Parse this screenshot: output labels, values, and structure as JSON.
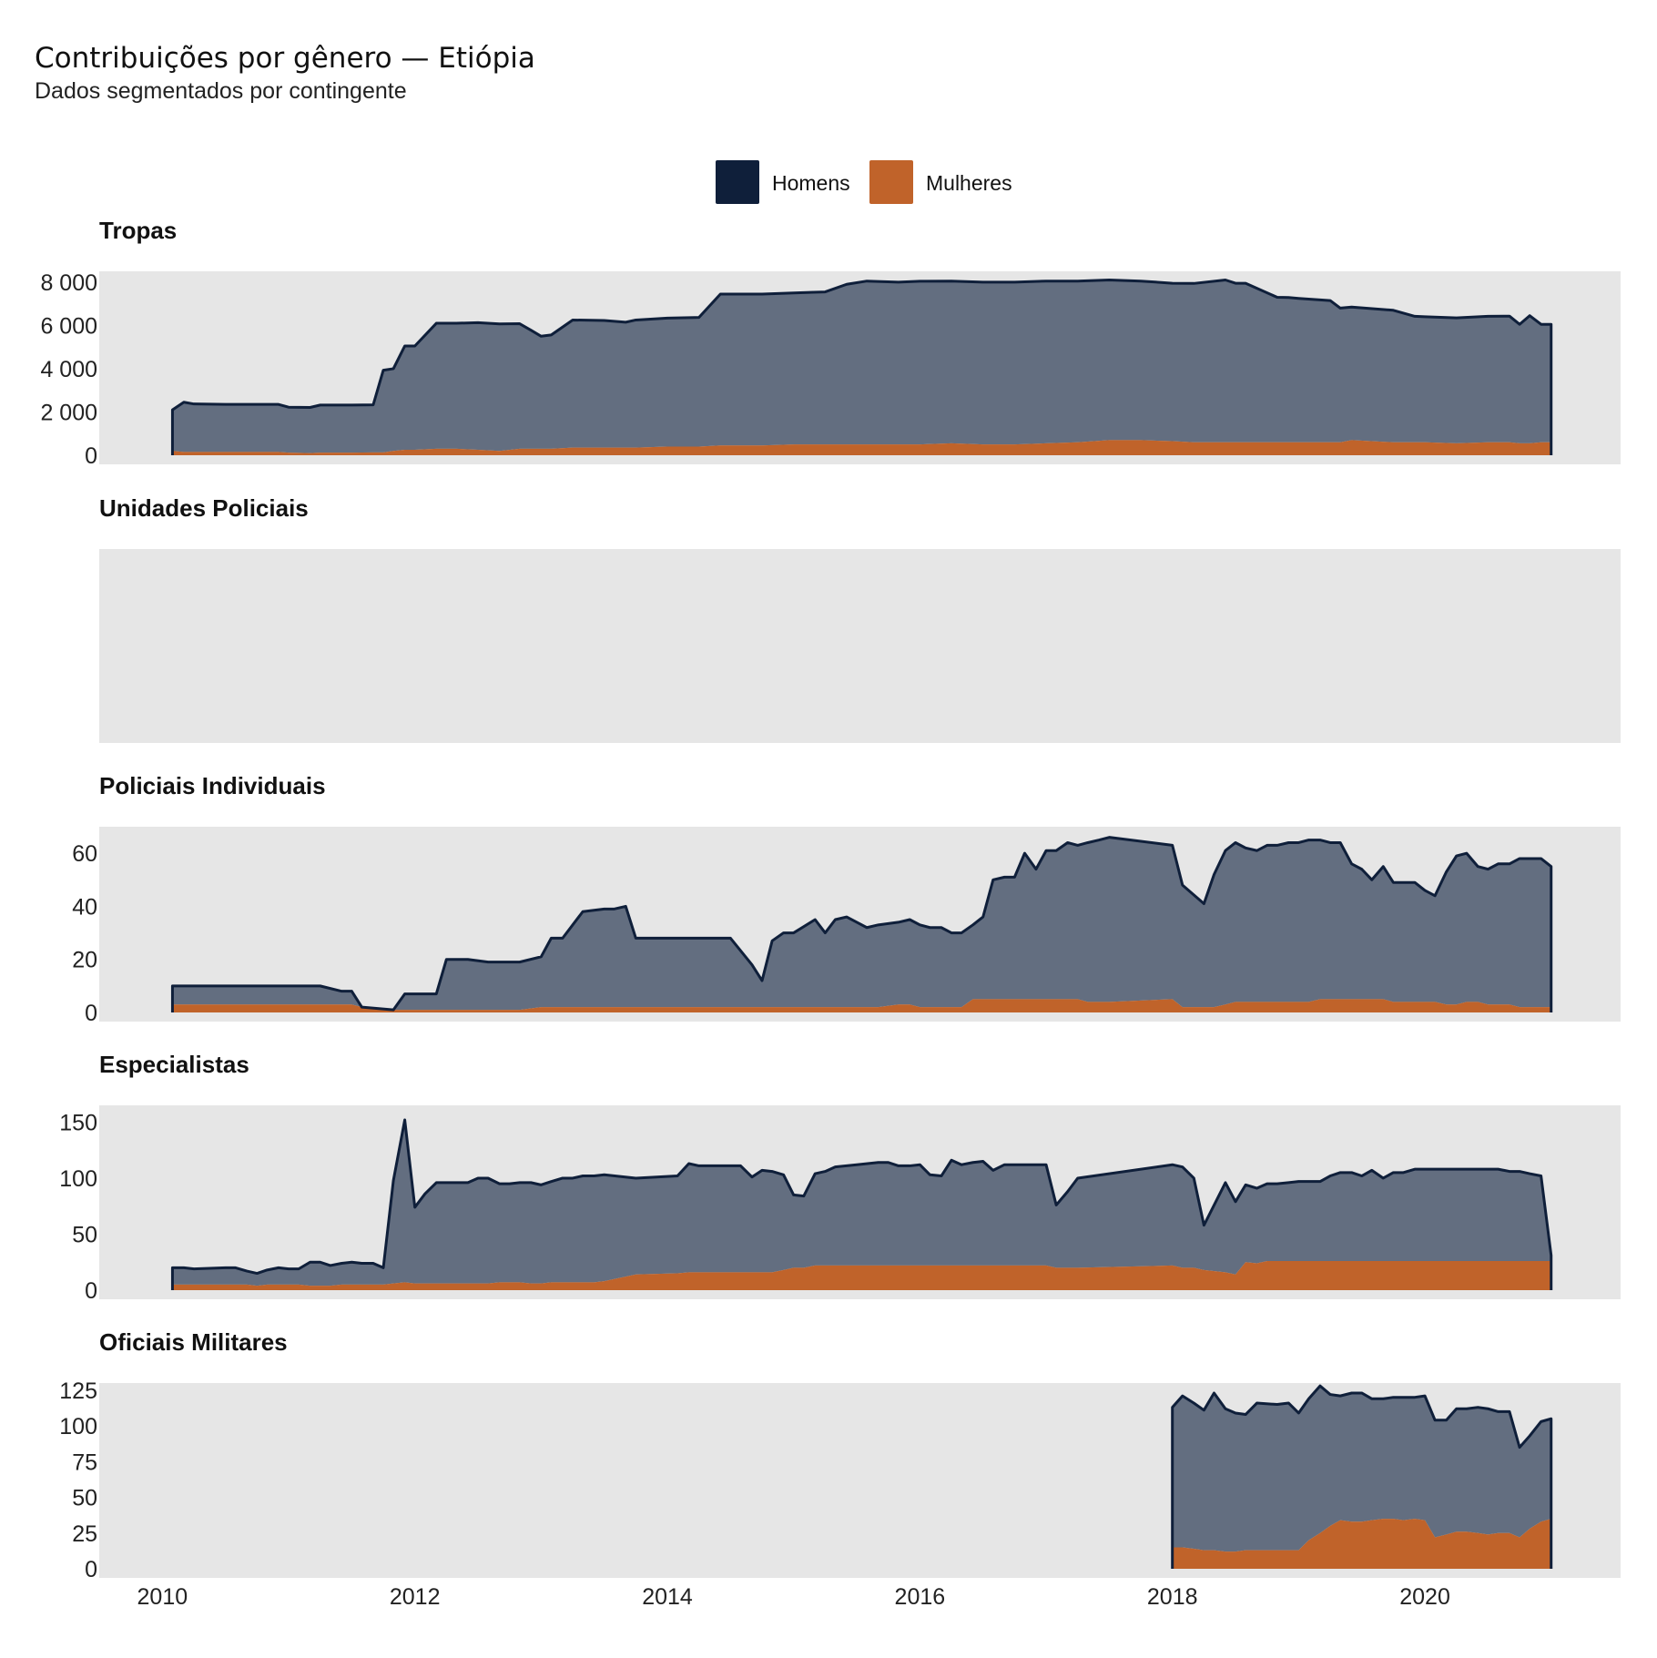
{
  "title": "Contribuições por gênero — Etiópia",
  "subtitle": "Dados segmentados por contingente",
  "colors": {
    "men": "#0f1f3a",
    "men_fill": "#636e80",
    "women": "#c0632a",
    "panel_bg": "#e6e6e6"
  },
  "chart_data": {
    "type": "area",
    "stacked": true,
    "title": "Contribuições por gênero — Etiópia",
    "subtitle": "Dados segmentados por contingente",
    "legend": {
      "position": "top-center",
      "items": [
        "Homens",
        "Mulheres"
      ]
    },
    "x_ticks": [
      "2010",
      "2012",
      "2014",
      "2016",
      "2018",
      "2020"
    ],
    "xlim": [
      2009.5,
      2021.55
    ],
    "series_names": [
      "Homens",
      "Mulheres"
    ],
    "panels": [
      {
        "name": "Tropas",
        "ylim": [
          0,
          8500
        ],
        "y_ticks": [
          0,
          2000,
          4000,
          6000,
          8000
        ],
        "y_tick_labels": [
          "0",
          "2 000",
          "4 000",
          "6 000",
          "8 000"
        ],
        "x": [
          2010.08,
          2010.17,
          2010.25,
          2010.5,
          2010.75,
          2010.92,
          2011.0,
          2011.17,
          2011.25,
          2011.5,
          2011.67,
          2011.75,
          2011.83,
          2011.92,
          2012.0,
          2012.17,
          2012.25,
          2012.33,
          2012.5,
          2012.67,
          2012.83,
          2012.92,
          2013.0,
          2013.08,
          2013.25,
          2013.5,
          2013.67,
          2013.75,
          2014.0,
          2014.25,
          2014.42,
          2014.58,
          2014.67,
          2014.75,
          2015.0,
          2015.25,
          2015.42,
          2015.58,
          2015.83,
          2016.0,
          2016.25,
          2016.5,
          2016.75,
          2017.0,
          2017.25,
          2017.5,
          2017.75,
          2018.0,
          2018.17,
          2018.42,
          2018.5,
          2018.58,
          2018.83,
          2018.92,
          2019.0,
          2019.25,
          2019.33,
          2019.42,
          2019.75,
          2019.92,
          2020.0,
          2020.25,
          2020.5,
          2020.67,
          2020.75,
          2020.83,
          2020.92,
          2021.0
        ],
        "men": [
          1900,
          2300,
          2220,
          2200,
          2200,
          2200,
          2100,
          2110,
          2200,
          2200,
          2200,
          3800,
          3800,
          4800,
          4800,
          5800,
          5800,
          5800,
          5880,
          5870,
          5780,
          5480,
          5200,
          5260,
          5900,
          5880,
          5800,
          5900,
          5940,
          5970,
          7000,
          7000,
          7000,
          7000,
          7000,
          7050,
          7400,
          7550,
          7500,
          7540,
          7500,
          7500,
          7500,
          7500,
          7450,
          7400,
          7350,
          7300,
          7340,
          7500,
          7350,
          7350,
          6700,
          6690,
          6650,
          6550,
          6200,
          6150,
          6100,
          5820,
          5800,
          5800,
          5820,
          5830,
          5500,
          5900,
          5450,
          5450
        ],
        "women": [
          200,
          150,
          150,
          150,
          150,
          150,
          120,
          100,
          120,
          120,
          130,
          130,
          200,
          250,
          250,
          300,
          300,
          300,
          250,
          200,
          300,
          300,
          300,
          300,
          350,
          350,
          350,
          350,
          400,
          400,
          450,
          450,
          450,
          450,
          500,
          500,
          500,
          500,
          500,
          500,
          550,
          500,
          500,
          550,
          600,
          700,
          700,
          650,
          600,
          600,
          600,
          600,
          600,
          600,
          600,
          600,
          600,
          700,
          600,
          600,
          600,
          550,
          600,
          600,
          550,
          550,
          600,
          600
        ]
      },
      {
        "name": "Unidades Policiais",
        "empty": true
      },
      {
        "name": "Policiais Individuais",
        "ylim": [
          0,
          70
        ],
        "y_ticks": [
          0,
          20,
          40,
          60
        ],
        "y_tick_labels": [
          "0",
          "20",
          "40",
          "60"
        ],
        "x": [
          2010.08,
          2011.25,
          2011.42,
          2011.5,
          2011.58,
          2011.83,
          2011.92,
          2012.17,
          2012.25,
          2012.42,
          2012.58,
          2012.75,
          2012.83,
          2013.0,
          2013.08,
          2013.17,
          2013.25,
          2013.33,
          2013.5,
          2013.58,
          2013.67,
          2013.75,
          2013.92,
          2014.0,
          2014.5,
          2014.67,
          2014.75,
          2014.83,
          2014.92,
          2015.0,
          2015.17,
          2015.25,
          2015.33,
          2015.42,
          2015.58,
          2015.67,
          2015.83,
          2015.92,
          2016.0,
          2016.08,
          2016.17,
          2016.25,
          2016.33,
          2016.42,
          2016.5,
          2016.58,
          2016.67,
          2016.75,
          2016.83,
          2016.92,
          2017.0,
          2017.08,
          2017.17,
          2017.25,
          2017.33,
          2017.42,
          2017.5,
          2018.0,
          2018.08,
          2018.25,
          2018.33,
          2018.42,
          2018.5,
          2018.58,
          2018.67,
          2018.75,
          2018.83,
          2018.92,
          2019.0,
          2019.08,
          2019.17,
          2019.25,
          2019.33,
          2019.42,
          2019.5,
          2019.58,
          2019.67,
          2019.75,
          2019.83,
          2019.92,
          2020.0,
          2020.08,
          2020.17,
          2020.25,
          2020.33,
          2020.42,
          2020.5,
          2020.58,
          2020.67,
          2020.75,
          2020.83,
          2020.92,
          2021.0
        ],
        "men": [
          7,
          7,
          5,
          5,
          0,
          0,
          6,
          6,
          19,
          19,
          18,
          18,
          18,
          19,
          26,
          26,
          31,
          36,
          37,
          37,
          38,
          26,
          26,
          26,
          26,
          16,
          10,
          25,
          28,
          28,
          33,
          28,
          33,
          34,
          30,
          31,
          31,
          32,
          31,
          30,
          30,
          28,
          28,
          28,
          31,
          45,
          46,
          46,
          55,
          49,
          56,
          56,
          59,
          58,
          60,
          61,
          62,
          58,
          46,
          39,
          50,
          58,
          60,
          58,
          57,
          59,
          59,
          60,
          60,
          61,
          60,
          59,
          59,
          51,
          49,
          45,
          50,
          45,
          45,
          45,
          42,
          40,
          50,
          56,
          56,
          51,
          51,
          53,
          53,
          56,
          56,
          56,
          53
        ],
        "women": [
          3,
          3,
          3,
          3,
          2,
          1,
          1,
          1,
          1,
          1,
          1,
          1,
          1,
          2,
          2,
          2,
          2,
          2,
          2,
          2,
          2,
          2,
          2,
          2,
          2,
          2,
          2,
          2,
          2,
          2,
          2,
          2,
          2,
          2,
          2,
          2,
          3,
          3,
          2,
          2,
          2,
          2,
          2,
          5,
          5,
          5,
          5,
          5,
          5,
          5,
          5,
          5,
          5,
          5,
          4,
          4,
          4,
          5,
          2,
          2,
          2,
          3,
          4,
          4,
          4,
          4,
          4,
          4,
          4,
          4,
          5,
          5,
          5,
          5,
          5,
          5,
          5,
          4,
          4,
          4,
          4,
          4,
          3,
          3,
          4,
          4,
          3,
          3,
          3,
          2,
          2,
          2,
          2
        ]
      },
      {
        "name": "Especialistas",
        "ylim": [
          0,
          165
        ],
        "y_ticks": [
          0,
          50,
          100,
          150
        ],
        "y_tick_labels": [
          "0",
          "50",
          "100",
          "150"
        ],
        "x": [
          2010.08,
          2010.17,
          2010.25,
          2010.5,
          2010.58,
          2010.67,
          2010.75,
          2010.83,
          2010.92,
          2011.0,
          2011.08,
          2011.17,
          2011.25,
          2011.33,
          2011.42,
          2011.5,
          2011.58,
          2011.67,
          2011.75,
          2011.83,
          2011.92,
          2012.0,
          2012.08,
          2012.17,
          2012.25,
          2012.33,
          2012.42,
          2012.5,
          2012.58,
          2012.67,
          2012.75,
          2012.83,
          2012.92,
          2013.0,
          2013.08,
          2013.17,
          2013.25,
          2013.33,
          2013.42,
          2013.5,
          2013.75,
          2014.08,
          2014.17,
          2014.25,
          2014.33,
          2014.42,
          2014.58,
          2014.67,
          2014.75,
          2014.83,
          2014.92,
          2015.0,
          2015.08,
          2015.17,
          2015.25,
          2015.33,
          2015.5,
          2015.67,
          2015.75,
          2015.83,
          2015.92,
          2016.0,
          2016.08,
          2016.17,
          2016.25,
          2016.33,
          2016.42,
          2016.5,
          2016.58,
          2016.67,
          2016.75,
          2016.83,
          2017.0,
          2017.08,
          2017.17,
          2017.25,
          2018.0,
          2018.08,
          2018.17,
          2018.25,
          2018.42,
          2018.5,
          2018.58,
          2018.67,
          2018.75,
          2018.83,
          2018.92,
          2019.0,
          2019.08,
          2019.17,
          2019.25,
          2019.33,
          2019.42,
          2019.5,
          2019.58,
          2019.67,
          2019.75,
          2019.83,
          2019.92,
          2020.0,
          2020.08,
          2020.17,
          2020.25,
          2020.33,
          2020.42,
          2020.5,
          2020.58,
          2020.67,
          2020.75,
          2020.83,
          2020.92,
          2021.0
        ],
        "men": [
          15,
          15,
          14,
          15,
          15,
          12,
          11,
          13,
          15,
          14,
          14,
          21,
          21,
          18,
          19,
          20,
          19,
          19,
          15,
          92,
          145,
          68,
          80,
          90,
          90,
          90,
          90,
          94,
          94,
          88,
          88,
          89,
          90,
          88,
          90,
          93,
          93,
          95,
          95,
          95,
          86,
          87,
          97,
          95,
          95,
          95,
          95,
          85,
          91,
          90,
          85,
          65,
          64,
          82,
          84,
          88,
          90,
          92,
          92,
          89,
          89,
          90,
          81,
          80,
          94,
          90,
          92,
          93,
          85,
          90,
          90,
          90,
          90,
          56,
          68,
          80,
          90,
          90,
          80,
          40,
          80,
          65,
          69,
          67,
          69,
          69,
          70,
          71,
          71,
          71,
          76,
          79,
          79,
          76,
          81,
          74,
          79,
          79,
          82,
          82,
          82,
          82,
          82,
          82,
          82,
          82,
          82,
          80,
          80,
          78,
          76,
          5,
          70,
          78
        ],
        "women": [
          5,
          5,
          5,
          5,
          5,
          5,
          4,
          5,
          5,
          5,
          5,
          4,
          4,
          4,
          5,
          5,
          5,
          5,
          5,
          6,
          7,
          6,
          6,
          6,
          6,
          6,
          6,
          6,
          6,
          7,
          7,
          7,
          6,
          6,
          7,
          7,
          7,
          7,
          7,
          8,
          14,
          15,
          16,
          16,
          16,
          16,
          16,
          16,
          16,
          16,
          18,
          20,
          20,
          22,
          22,
          22,
          22,
          22,
          22,
          22,
          22,
          22,
          22,
          22,
          22,
          22,
          22,
          22,
          22,
          22,
          22,
          22,
          22,
          20,
          20,
          20,
          22,
          20,
          20,
          18,
          16,
          14,
          25,
          24,
          26,
          26,
          26,
          26,
          26,
          26,
          26,
          26,
          26,
          26,
          26,
          26,
          26,
          26,
          26,
          26,
          26,
          26,
          26,
          26,
          26,
          26,
          26,
          26,
          26,
          26,
          26,
          26,
          26,
          26
        ]
      },
      {
        "name": "Oficiais Militares",
        "ylim": [
          0,
          130
        ],
        "y_ticks": [
          0,
          25,
          50,
          75,
          100,
          125
        ],
        "y_tick_labels": [
          "0",
          "25",
          "50",
          "75",
          "100",
          "125"
        ],
        "x": [
          2018.0,
          2018.08,
          2018.17,
          2018.25,
          2018.33,
          2018.42,
          2018.5,
          2018.58,
          2018.67,
          2018.83,
          2018.92,
          2019.0,
          2019.08,
          2019.17,
          2019.25,
          2019.33,
          2019.42,
          2019.5,
          2019.58,
          2019.67,
          2019.75,
          2019.83,
          2019.92,
          2020.0,
          2020.08,
          2020.17,
          2020.25,
          2020.33,
          2020.42,
          2020.5,
          2020.58,
          2020.67,
          2020.75,
          2020.83,
          2020.92,
          2021.0
        ],
        "men": [
          98,
          106,
          102,
          98,
          110,
          100,
          97,
          95,
          103,
          102,
          103,
          96,
          99,
          103,
          92,
          87,
          90,
          90,
          85,
          84,
          85,
          86,
          85,
          87,
          82,
          80,
          86,
          86,
          88,
          88,
          85,
          85,
          63,
          65,
          70,
          70
        ],
        "women": [
          15,
          15,
          14,
          13,
          13,
          12,
          12,
          13,
          13,
          13,
          13,
          13,
          20,
          25,
          30,
          34,
          33,
          33,
          34,
          35,
          35,
          34,
          35,
          34,
          22,
          24,
          26,
          26,
          25,
          24,
          25,
          25,
          22,
          28,
          33,
          35
        ]
      }
    ]
  }
}
